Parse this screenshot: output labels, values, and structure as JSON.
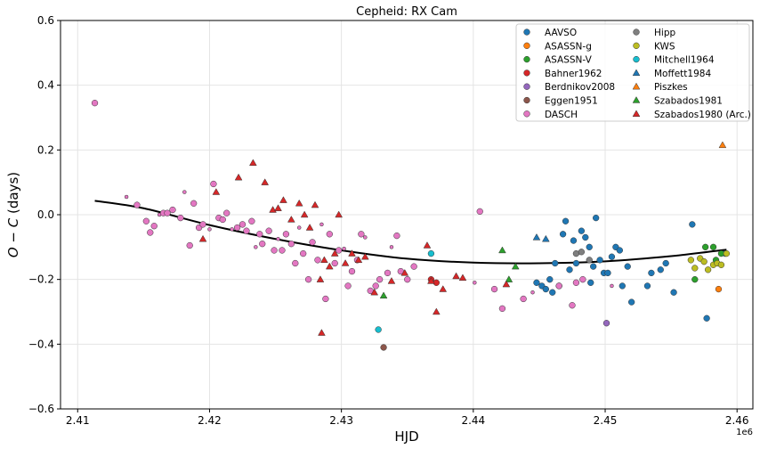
{
  "chart_data": {
    "type": "scatter",
    "title": "Cepheid: RX Cam",
    "xlabel": "HJD",
    "ylabel_main": "O − C",
    "ylabel_unit": " (days)",
    "x_offset_label": "1e6",
    "xlim": [
      2.4087,
      2.4612
    ],
    "ylim": [
      -0.6,
      0.6
    ],
    "xticks": [
      2.41,
      2.42,
      2.43,
      2.44,
      2.45,
      2.46
    ],
    "xtick_labels": [
      "2.41",
      "2.42",
      "2.43",
      "2.44",
      "2.45",
      "2.46"
    ],
    "yticks": [
      -0.6,
      -0.4,
      -0.2,
      0.0,
      0.2,
      0.4,
      0.6
    ],
    "ytick_labels": [
      "−0.6",
      "−0.4",
      "−0.2",
      "0.0",
      "0.2",
      "0.4",
      "0.6"
    ],
    "grid": true,
    "legend_position": "upper-right",
    "fit_curve": {
      "color": "#000000",
      "points": [
        [
          2.4113,
          0.043
        ],
        [
          2.415,
          0.02
        ],
        [
          2.42,
          -0.032
        ],
        [
          2.425,
          -0.075
        ],
        [
          2.43,
          -0.11
        ],
        [
          2.435,
          -0.136
        ],
        [
          2.44,
          -0.148
        ],
        [
          2.445,
          -0.15
        ],
        [
          2.45,
          -0.144
        ],
        [
          2.455,
          -0.128
        ],
        [
          2.4592,
          -0.108
        ]
      ]
    },
    "series": [
      {
        "name": "AAVSO",
        "marker": "circle",
        "color": "#1f77b4",
        "points": [
          [
            2.4452,
            -0.22
          ],
          [
            2.4448,
            -0.21
          ],
          [
            2.4458,
            -0.2
          ],
          [
            2.4455,
            -0.23
          ],
          [
            2.4462,
            -0.15
          ],
          [
            2.4465,
            -0.22
          ],
          [
            2.4468,
            -0.06
          ],
          [
            2.447,
            -0.02
          ],
          [
            2.4473,
            -0.17
          ],
          [
            2.4476,
            -0.08
          ],
          [
            2.4478,
            -0.15
          ],
          [
            2.4482,
            -0.05
          ],
          [
            2.4485,
            -0.07
          ],
          [
            2.4488,
            -0.1
          ],
          [
            2.4491,
            -0.16
          ],
          [
            2.4493,
            -0.01
          ],
          [
            2.4496,
            -0.14
          ],
          [
            2.4499,
            -0.18
          ],
          [
            2.4502,
            -0.18
          ],
          [
            2.4505,
            -0.13
          ],
          [
            2.4508,
            -0.1
          ],
          [
            2.4511,
            -0.11
          ],
          [
            2.4513,
            -0.22
          ],
          [
            2.4517,
            -0.16
          ],
          [
            2.452,
            -0.27
          ],
          [
            2.4532,
            -0.22
          ],
          [
            2.4542,
            -0.17
          ],
          [
            2.4546,
            -0.15
          ],
          [
            2.4552,
            -0.24
          ],
          [
            2.4566,
            -0.03
          ],
          [
            2.4577,
            -0.32
          ],
          [
            2.4591,
            -0.12
          ],
          [
            2.446,
            -0.24
          ],
          [
            2.4489,
            -0.21
          ],
          [
            2.4535,
            -0.18
          ]
        ]
      },
      {
        "name": "ASASSN-g",
        "marker": "circle",
        "color": "#ff7f0e",
        "points": [
          [
            2.4586,
            -0.23
          ]
        ]
      },
      {
        "name": "ASASSN-V",
        "marker": "circle",
        "color": "#2ca02c",
        "points": [
          [
            2.4568,
            -0.2
          ],
          [
            2.4576,
            -0.1
          ],
          [
            2.4582,
            -0.1
          ],
          [
            2.4584,
            -0.14
          ],
          [
            2.4588,
            -0.12
          ]
        ]
      },
      {
        "name": "Bahner1962",
        "marker": "circle",
        "color": "#d62728",
        "points": [
          [
            2.4368,
            -0.2
          ],
          [
            2.4372,
            -0.21
          ]
        ]
      },
      {
        "name": "Berdnikov2008",
        "marker": "circle",
        "color": "#9467bd",
        "points": [
          [
            2.4501,
            -0.335
          ]
        ]
      },
      {
        "name": "Eggen1951",
        "marker": "circle",
        "color": "#8c564b",
        "points": [
          [
            2.4332,
            -0.41
          ]
        ]
      },
      {
        "name": "DASCH",
        "marker": "circle",
        "color": "#e377c2",
        "points": [
          [
            2.4113,
            0.345
          ],
          [
            2.4137,
            0.055
          ],
          [
            2.4145,
            0.03
          ],
          [
            2.4152,
            -0.02
          ],
          [
            2.4155,
            -0.055
          ],
          [
            2.4158,
            -0.035
          ],
          [
            2.4162,
            0.0
          ],
          [
            2.4165,
            0.005
          ],
          [
            2.4168,
            0.005
          ],
          [
            2.4172,
            0.015
          ],
          [
            2.4178,
            -0.01
          ],
          [
            2.4181,
            0.07
          ],
          [
            2.4185,
            -0.095
          ],
          [
            2.4188,
            0.035
          ],
          [
            2.4192,
            -0.04
          ],
          [
            2.4195,
            -0.03
          ],
          [
            2.42,
            -0.045
          ],
          [
            2.4203,
            0.095
          ],
          [
            2.4207,
            -0.01
          ],
          [
            2.421,
            -0.015
          ],
          [
            2.4213,
            0.005
          ],
          [
            2.4217,
            -0.045
          ],
          [
            2.4221,
            -0.04
          ],
          [
            2.4225,
            -0.03
          ],
          [
            2.4228,
            -0.05
          ],
          [
            2.4232,
            -0.02
          ],
          [
            2.4235,
            -0.1
          ],
          [
            2.4238,
            -0.06
          ],
          [
            2.424,
            -0.09
          ],
          [
            2.4245,
            -0.05
          ],
          [
            2.4249,
            -0.11
          ],
          [
            2.4252,
            -0.075
          ],
          [
            2.4255,
            -0.11
          ],
          [
            2.4258,
            -0.06
          ],
          [
            2.4262,
            -0.09
          ],
          [
            2.4265,
            -0.15
          ],
          [
            2.4268,
            -0.04
          ],
          [
            2.4271,
            -0.12
          ],
          [
            2.4275,
            -0.2
          ],
          [
            2.4278,
            -0.085
          ],
          [
            2.4282,
            -0.14
          ],
          [
            2.4285,
            -0.03
          ],
          [
            2.4288,
            -0.26
          ],
          [
            2.4291,
            -0.06
          ],
          [
            2.4295,
            -0.15
          ],
          [
            2.4298,
            -0.11
          ],
          [
            2.4302,
            -0.105
          ],
          [
            2.4305,
            -0.22
          ],
          [
            2.4308,
            -0.175
          ],
          [
            2.4312,
            -0.14
          ],
          [
            2.4315,
            -0.06
          ],
          [
            2.4318,
            -0.07
          ],
          [
            2.4322,
            -0.235
          ],
          [
            2.4326,
            -0.22
          ],
          [
            2.4329,
            -0.2
          ],
          [
            2.4335,
            -0.18
          ],
          [
            2.4338,
            -0.1
          ],
          [
            2.4342,
            -0.065
          ],
          [
            2.4345,
            -0.175
          ],
          [
            2.435,
            -0.2
          ],
          [
            2.4355,
            -0.16
          ],
          [
            2.4401,
            -0.21
          ],
          [
            2.4405,
            0.01
          ],
          [
            2.4416,
            -0.23
          ],
          [
            2.4422,
            -0.29
          ],
          [
            2.4438,
            -0.26
          ],
          [
            2.4445,
            -0.24
          ],
          [
            2.4465,
            -0.22
          ],
          [
            2.4475,
            -0.28
          ],
          [
            2.4478,
            -0.21
          ],
          [
            2.4483,
            -0.2
          ],
          [
            2.4505,
            -0.22
          ]
        ]
      },
      {
        "name": "Hipp",
        "marker": "circle",
        "color": "#7f7f7f",
        "points": [
          [
            2.4478,
            -0.12
          ],
          [
            2.4482,
            -0.115
          ],
          [
            2.4488,
            -0.14
          ]
        ]
      },
      {
        "name": "KWS",
        "marker": "circle",
        "color": "#bcbd22",
        "points": [
          [
            2.4565,
            -0.14
          ],
          [
            2.4568,
            -0.165
          ],
          [
            2.4572,
            -0.135
          ],
          [
            2.4575,
            -0.145
          ],
          [
            2.4578,
            -0.17
          ],
          [
            2.4582,
            -0.155
          ],
          [
            2.4585,
            -0.15
          ],
          [
            2.4588,
            -0.155
          ],
          [
            2.4592,
            -0.12
          ]
        ]
      },
      {
        "name": "Mitchell1964",
        "marker": "circle",
        "color": "#17becf",
        "points": [
          [
            2.4328,
            -0.355
          ],
          [
            2.4368,
            -0.12
          ]
        ]
      },
      {
        "name": "Moffett1984",
        "marker": "triangle",
        "color": "#1f77b4",
        "points": [
          [
            2.4448,
            -0.07
          ],
          [
            2.4455,
            -0.075
          ]
        ]
      },
      {
        "name": "Piszkes",
        "marker": "triangle",
        "color": "#ff7f0e",
        "points": [
          [
            2.4589,
            0.215
          ]
        ]
      },
      {
        "name": "Szabados1981",
        "marker": "triangle",
        "color": "#2ca02c",
        "points": [
          [
            2.4332,
            -0.25
          ],
          [
            2.4422,
            -0.11
          ],
          [
            2.4427,
            -0.2
          ],
          [
            2.4432,
            -0.16
          ]
        ]
      },
      {
        "name": "Szabados1980 (Arc.)",
        "marker": "triangle",
        "color": "#d62728",
        "points": [
          [
            2.4195,
            -0.075
          ],
          [
            2.4205,
            0.07
          ],
          [
            2.4222,
            0.115
          ],
          [
            2.4233,
            0.16
          ],
          [
            2.4242,
            0.1
          ],
          [
            2.4248,
            0.015
          ],
          [
            2.4252,
            0.02
          ],
          [
            2.4256,
            0.045
          ],
          [
            2.4262,
            -0.015
          ],
          [
            2.4268,
            0.035
          ],
          [
            2.4272,
            0.0
          ],
          [
            2.4276,
            -0.04
          ],
          [
            2.428,
            0.03
          ],
          [
            2.4284,
            -0.2
          ],
          [
            2.4287,
            -0.14
          ],
          [
            2.4291,
            -0.16
          ],
          [
            2.4295,
            -0.12
          ],
          [
            2.4298,
            0.0
          ],
          [
            2.4303,
            -0.15
          ],
          [
            2.4308,
            -0.12
          ],
          [
            2.4313,
            -0.14
          ],
          [
            2.4318,
            -0.13
          ],
          [
            2.4325,
            -0.24
          ],
          [
            2.4338,
            -0.205
          ],
          [
            2.4348,
            -0.18
          ],
          [
            2.4365,
            -0.095
          ],
          [
            2.4368,
            -0.205
          ],
          [
            2.4372,
            -0.3
          ],
          [
            2.4377,
            -0.23
          ],
          [
            2.4387,
            -0.19
          ],
          [
            2.4392,
            -0.195
          ],
          [
            2.4425,
            -0.215
          ],
          [
            2.4285,
            -0.365
          ]
        ]
      }
    ]
  }
}
